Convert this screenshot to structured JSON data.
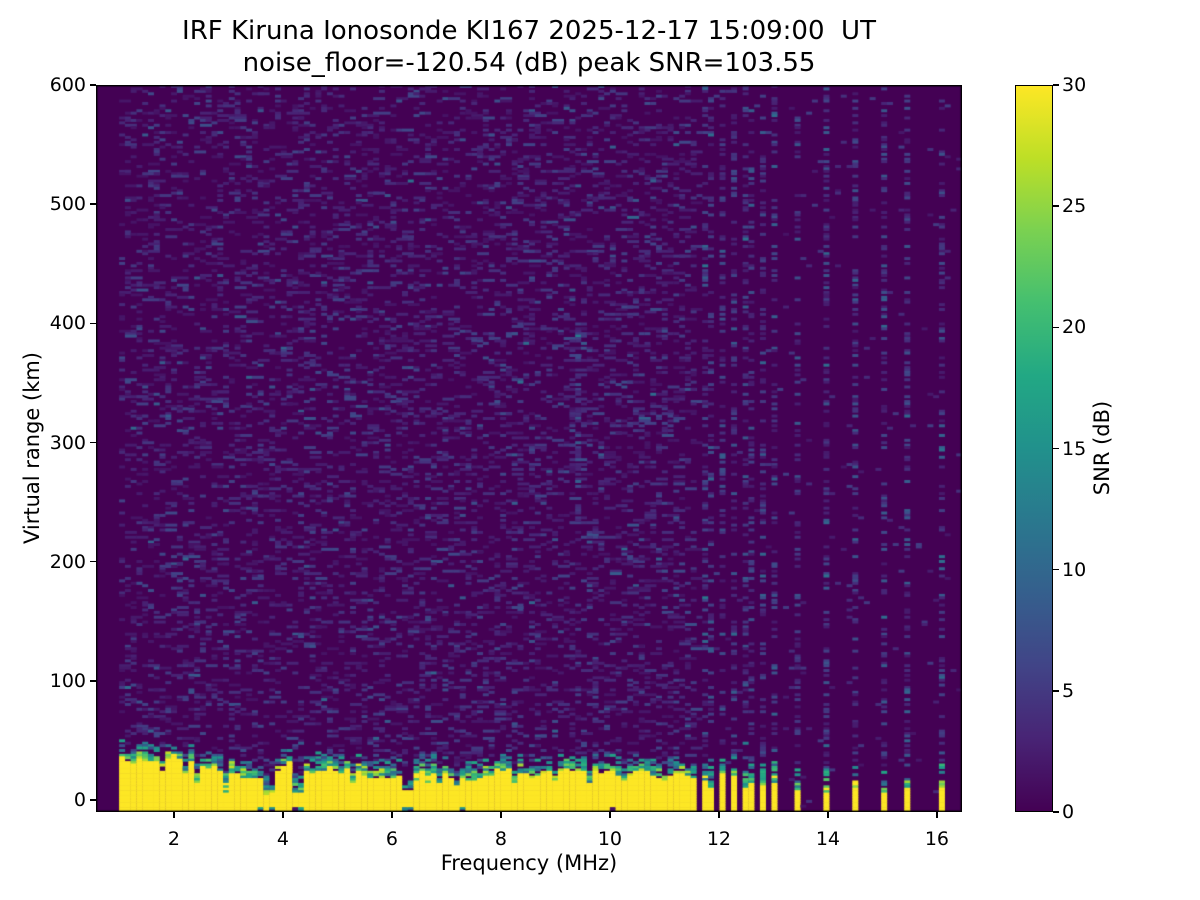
{
  "chart_data": {
    "type": "heatmap",
    "title": "IRF Kiruna Ionosonde KI167 2025-12-17 15:09:00  UT",
    "subtitle": "noise_floor=-120.54 (dB) peak SNR=103.55",
    "xlabel": "Frequency (MHz)",
    "ylabel": "Virtual range (km)",
    "xlim": [
      0.57,
      16.46
    ],
    "ylim": [
      -10,
      600
    ],
    "xticks": [
      2,
      4,
      6,
      8,
      10,
      12,
      14,
      16
    ],
    "yticks": [
      0,
      100,
      200,
      300,
      400,
      500,
      600
    ],
    "colorbar": {
      "label": "SNR (dB)",
      "min": 0,
      "max": 30,
      "ticks": [
        0,
        5,
        10,
        15,
        20,
        25,
        30
      ]
    },
    "colormap": "viridis",
    "colormap_stops": [
      [
        0.0,
        "#440154"
      ],
      [
        0.1,
        "#482475"
      ],
      [
        0.2,
        "#414487"
      ],
      [
        0.3,
        "#355f8d"
      ],
      [
        0.4,
        "#2a788e"
      ],
      [
        0.5,
        "#21918c"
      ],
      [
        0.6,
        "#22a884"
      ],
      [
        0.7,
        "#44bf70"
      ],
      [
        0.8,
        "#7ad151"
      ],
      [
        0.9,
        "#bddf26"
      ],
      [
        1.0,
        "#fde725"
      ]
    ],
    "values_from_title": {
      "noise_floor_db": -120.54,
      "peak_snr_db": 103.55,
      "station": "KI167",
      "timestamp_ut": "2025-12-17 15:09:00"
    },
    "grid": {
      "cols": 150,
      "rows": 300
    },
    "signal": {
      "tx_start_mhz": 1.0,
      "continuous_band_end_mhz": 11.63,
      "ground_clutter": {
        "base_top_km": 27,
        "min_top_km": 17,
        "max_top_km": 40,
        "fringe1_km": 7,
        "fringe2_km": 15
      },
      "deep_notch_freqs_mhz": [
        3.7,
        4.3,
        6.3
      ],
      "shallow_notch_freqs_mhz": [
        2.4,
        3.0,
        5.3,
        6.9,
        7.5,
        8.3,
        9.0,
        9.6,
        10.3,
        11.0
      ],
      "bottom_gap_freqs_mhz": [
        3.6,
        3.75,
        4.25,
        4.35,
        6.25,
        6.35,
        7.3,
        10.0
      ],
      "stripe_freqs_mhz": [
        11.72,
        11.9,
        12.08,
        12.27,
        12.45,
        12.63,
        12.82,
        13.0,
        13.42,
        13.93,
        14.5,
        15.07,
        15.45,
        16.05
      ],
      "streaks": [
        {
          "f_mhz": 9.4,
          "km_range": [
            235,
            395
          ],
          "strength": 0.55
        },
        {
          "f_mhz": 11.0,
          "km_range": [
            305,
            400
          ],
          "strength": 0.3
        },
        {
          "f_mhz": 6.5,
          "km_range": [
            310,
            400
          ],
          "strength": 0.18
        }
      ],
      "noise_speckle_fraction": 0.2
    }
  }
}
